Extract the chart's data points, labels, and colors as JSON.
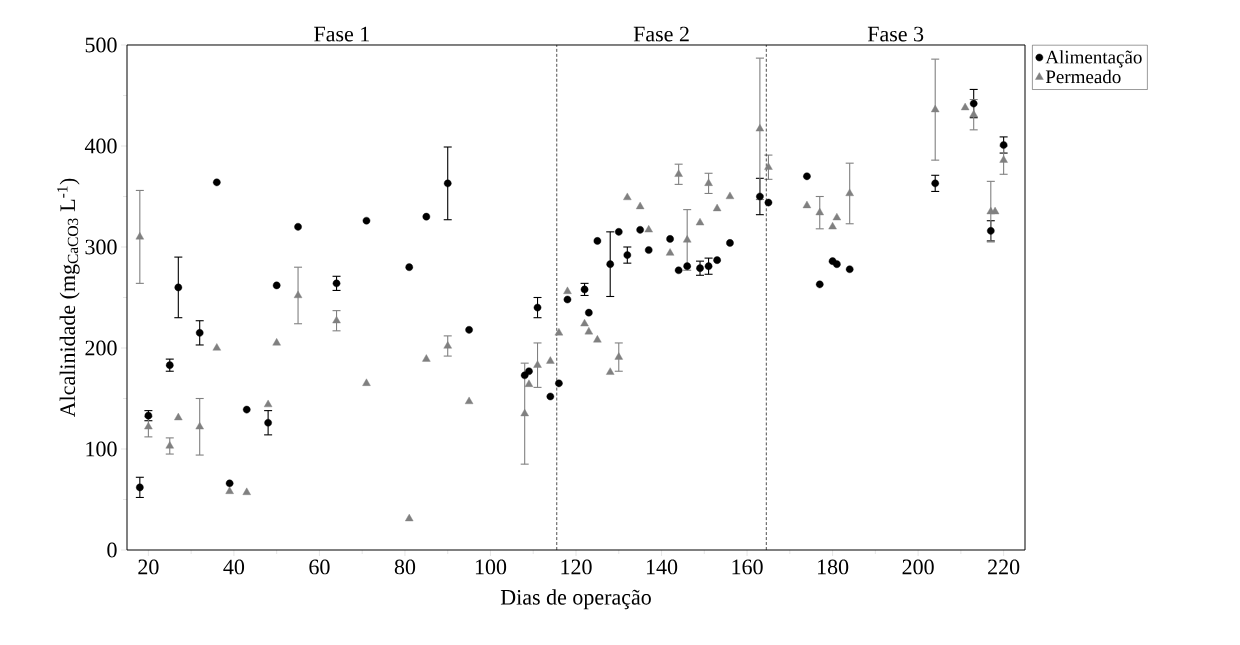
{
  "chart_data": {
    "type": "scatter",
    "xlabel": "Dias de operação",
    "ylabel": "Alcalinidade (mg$_{CaCO3}$ L$^{-1}$)",
    "annotations": [
      "Fase 1",
      "Fase 2",
      "Fase 3"
    ],
    "ref_lines": [
      {
        "axis": "x",
        "value": 115.5,
        "line_style": "dashed",
        "color": "#000000"
      },
      {
        "axis": "x",
        "value": 164.5,
        "line_style": "dashed",
        "color": "#000000"
      }
    ],
    "xlim": [
      15,
      225
    ],
    "xticks": [
      20,
      40,
      60,
      80,
      100,
      120,
      140,
      160,
      180,
      200,
      220
    ],
    "ylim": [
      0,
      500
    ],
    "yticks": [
      0,
      100,
      200,
      300,
      400,
      500
    ],
    "grid": false,
    "legend": "top right",
    "series": [
      {
        "name": "Alimentação",
        "color": "#000000",
        "marker": "circle",
        "x": [
          18,
          20,
          25,
          27,
          32,
          36,
          39,
          43,
          48,
          50,
          55,
          64,
          71,
          81,
          85,
          90,
          95,
          108,
          109,
          111,
          114,
          116,
          118,
          122,
          123,
          125,
          128,
          130,
          132,
          135,
          137,
          142,
          144,
          146,
          149,
          151,
          153,
          156,
          163,
          165,
          174,
          177,
          180,
          181,
          184,
          204,
          213,
          217,
          218,
          220
        ],
        "values": [
          62,
          133,
          183,
          260,
          215,
          364,
          66,
          139,
          126,
          262,
          320,
          264,
          326,
          280,
          330,
          363,
          218,
          173,
          177,
          240,
          152,
          165,
          248,
          258,
          235,
          306,
          283,
          315,
          292,
          317,
          297,
          308,
          277,
          281,
          279,
          281,
          287,
          304,
          350,
          344,
          370,
          263,
          286,
          283,
          278,
          363,
          442,
          316,
          null,
          401
        ],
        "errors": [
          10,
          5,
          6,
          30,
          12,
          null,
          null,
          null,
          12,
          null,
          null,
          7,
          null,
          null,
          null,
          36,
          null,
          null,
          null,
          10,
          null,
          null,
          null,
          6,
          null,
          null,
          32,
          null,
          8,
          null,
          null,
          null,
          null,
          null,
          7,
          8,
          null,
          null,
          18,
          null,
          null,
          null,
          null,
          null,
          null,
          8,
          14,
          10,
          null,
          8
        ]
      },
      {
        "name": "Permeado",
        "color": "#808080",
        "marker": "triangle",
        "x": [
          18,
          20,
          25,
          27,
          32,
          36,
          39,
          43,
          48,
          50,
          55,
          64,
          71,
          81,
          85,
          90,
          95,
          108,
          109,
          111,
          114,
          116,
          118,
          122,
          123,
          125,
          128,
          130,
          132,
          135,
          137,
          142,
          144,
          146,
          149,
          151,
          153,
          156,
          163,
          165,
          174,
          177,
          180,
          181,
          184,
          204,
          211,
          213,
          217,
          218,
          220
        ],
        "values": [
          310,
          122,
          103,
          131,
          122,
          200,
          58,
          57,
          144,
          205,
          252,
          227,
          165,
          31,
          189,
          202,
          147,
          135,
          164,
          183,
          187,
          215,
          256,
          224,
          216,
          208,
          176,
          191,
          349,
          340,
          317,
          294,
          372,
          307,
          324,
          363,
          338,
          350,
          417,
          379,
          341,
          334,
          320,
          329,
          353,
          436,
          438,
          431,
          335,
          335,
          386
        ],
        "errors": [
          46,
          10,
          8,
          null,
          28,
          null,
          null,
          null,
          null,
          null,
          28,
          10,
          null,
          null,
          null,
          10,
          null,
          50,
          null,
          22,
          null,
          null,
          null,
          null,
          null,
          null,
          null,
          14,
          null,
          null,
          null,
          null,
          10,
          30,
          null,
          10,
          null,
          null,
          70,
          12,
          null,
          16,
          null,
          null,
          30,
          50,
          null,
          15,
          30,
          null,
          14
        ]
      }
    ]
  }
}
